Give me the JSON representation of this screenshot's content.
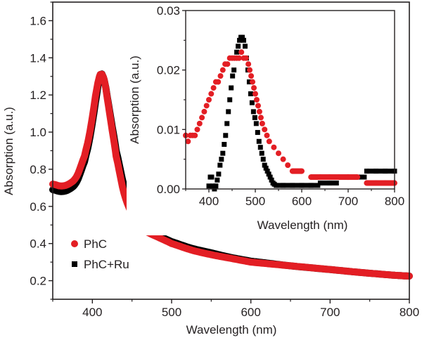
{
  "chart_data": [
    {
      "type": "line",
      "role": "main",
      "title": "",
      "xlabel": "Wavelength (nm)",
      "ylabel": "Absorption (a.u.)",
      "xlim": [
        350,
        800
      ],
      "ylim": [
        0.1,
        1.7
      ],
      "xticks": [
        400,
        500,
        600,
        700,
        800
      ],
      "xtick_labels": [
        "400",
        "500",
        "600",
        "700",
        "800"
      ],
      "yticks": [
        0.2,
        0.4,
        0.6,
        0.8,
        1.0,
        1.2,
        1.4,
        1.6
      ],
      "ytick_labels": [
        "0.2",
        "0.4",
        "0.6",
        "0.8",
        "1.0",
        "1.2",
        "1.4",
        "1.6"
      ],
      "grid": false,
      "legend": {
        "position": "bottom-left",
        "entries": [
          {
            "label": "PhC",
            "marker": "circle",
            "color": "#e31e24"
          },
          {
            "label": "PhC+Ru",
            "marker": "square",
            "color": "#000000"
          }
        ]
      },
      "series": [
        {
          "name": "PhC+Ru",
          "color": "#000000",
          "x": [
            350,
            360,
            370,
            380,
            390,
            395,
            400,
            405,
            410,
            415,
            420,
            425,
            430,
            440,
            450,
            460,
            470,
            485,
            500,
            525,
            550,
            575,
            600,
            650,
            700,
            750,
            800
          ],
          "y": [
            0.69,
            0.68,
            0.69,
            0.73,
            0.84,
            0.93,
            1.05,
            1.19,
            1.31,
            1.28,
            1.16,
            1.03,
            0.9,
            0.71,
            0.59,
            0.52,
            0.48,
            0.44,
            0.41,
            0.375,
            0.35,
            0.325,
            0.305,
            0.28,
            0.26,
            0.24,
            0.225
          ]
        },
        {
          "name": "PhC",
          "color": "#e31e24",
          "x": [
            350,
            360,
            370,
            380,
            390,
            395,
            400,
            405,
            410,
            415,
            420,
            425,
            430,
            440,
            450,
            460,
            470,
            485,
            500,
            525,
            550,
            575,
            600,
            650,
            700,
            750,
            800
          ],
          "y": [
            0.72,
            0.71,
            0.72,
            0.76,
            0.87,
            0.96,
            1.08,
            1.22,
            1.31,
            1.28,
            1.15,
            1.01,
            0.87,
            0.67,
            0.56,
            0.5,
            0.46,
            0.43,
            0.4,
            0.365,
            0.34,
            0.32,
            0.3,
            0.28,
            0.26,
            0.24,
            0.225
          ]
        }
      ]
    },
    {
      "type": "scatter",
      "role": "inset",
      "title": "",
      "xlabel": "Wavelength (nm)",
      "ylabel": "Absorption (a.u.)",
      "xlim": [
        350,
        800
      ],
      "ylim": [
        0.0,
        0.03
      ],
      "xticks": [
        400,
        500,
        600,
        700,
        800
      ],
      "xtick_labels": [
        "400",
        "500",
        "600",
        "700",
        "800"
      ],
      "yticks": [
        0.0,
        0.01,
        0.02,
        0.03
      ],
      "ytick_labels": [
        "0.00",
        "0.01",
        "0.02",
        "0.03"
      ],
      "grid": false,
      "series": [
        {
          "name": "PhC+Ru",
          "marker": "square",
          "color": "#000000",
          "x": [
            400,
            403,
            406,
            409,
            412,
            415,
            418,
            421,
            424,
            427,
            430,
            433,
            436,
            439,
            442,
            445,
            448,
            451,
            454,
            457,
            460,
            463,
            466,
            469,
            472,
            475,
            478,
            481,
            484,
            487,
            490,
            493,
            496,
            499,
            502,
            505,
            508,
            511,
            514,
            517,
            520,
            523,
            526,
            529,
            532,
            535,
            538,
            541,
            545,
            560,
            580,
            600,
            620,
            640,
            660,
            680,
            700,
            720,
            740,
            760,
            780,
            800
          ],
          "y": [
            0.0005,
            0.002,
            0.002,
            0.0005,
            0.0,
            0.0005,
            0.0015,
            0.0025,
            0.004,
            0.005,
            0.006,
            0.0075,
            0.009,
            0.011,
            0.013,
            0.015,
            0.017,
            0.019,
            0.02,
            0.022,
            0.023,
            0.024,
            0.025,
            0.0255,
            0.0255,
            0.025,
            0.024,
            0.022,
            0.02,
            0.018,
            0.016,
            0.0145,
            0.013,
            0.012,
            0.011,
            0.0095,
            0.008,
            0.007,
            0.006,
            0.005,
            0.004,
            0.0035,
            0.003,
            0.0025,
            0.002,
            0.0015,
            0.001,
            0.0008,
            0.0006,
            0.0006,
            0.0006,
            0.0006,
            0.0006,
            0.001,
            0.001,
            0.002,
            0.002,
            0.002,
            0.003,
            0.003,
            0.003,
            0.003
          ]
        },
        {
          "name": "PhC",
          "marker": "circle",
          "color": "#e31e24",
          "x": [
            350,
            355,
            360,
            365,
            370,
            375,
            380,
            385,
            390,
            395,
            400,
            405,
            410,
            415,
            420,
            425,
            430,
            435,
            440,
            445,
            450,
            455,
            460,
            465,
            470,
            475,
            480,
            485,
            488,
            491,
            494,
            497,
            500,
            503,
            506,
            509,
            512,
            515,
            520,
            525,
            530,
            540,
            550,
            560,
            570,
            580,
            600,
            620,
            640,
            660,
            680,
            700,
            720,
            740,
            760,
            780,
            800
          ],
          "y": [
            0.009,
            0.008,
            0.009,
            0.009,
            0.009,
            0.01,
            0.011,
            0.012,
            0.013,
            0.014,
            0.015,
            0.016,
            0.017,
            0.018,
            0.018,
            0.019,
            0.02,
            0.021,
            0.021,
            0.022,
            0.022,
            0.022,
            0.022,
            0.022,
            0.023,
            0.022,
            0.022,
            0.021,
            0.02,
            0.019,
            0.018,
            0.017,
            0.016,
            0.015,
            0.014,
            0.013,
            0.012,
            0.011,
            0.01,
            0.009,
            0.008,
            0.007,
            0.006,
            0.005,
            0.004,
            0.003,
            0.003,
            0.002,
            0.002,
            0.002,
            0.002,
            0.002,
            0.002,
            0.001,
            0.001,
            0.001,
            0.001
          ]
        }
      ]
    }
  ]
}
